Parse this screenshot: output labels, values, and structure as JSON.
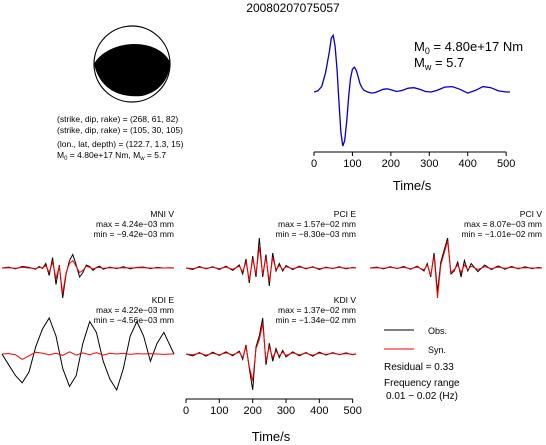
{
  "event_id": "20080207075057",
  "mechanism": {
    "line1": "(strike, dip, rake) = (268, 61, 82)",
    "line2": "(strike, dip, rake) = (105, 30, 105)",
    "line3": "(lon., lat, depth) = (122.7, 1.3, 15)",
    "m0_line": "M",
    "m0_sub": "0",
    "m0_value": " = 4.80e+17 Nm, M",
    "mw_sub": "w",
    "mw_value": " = 5.7"
  },
  "stf_labels": {
    "m0_prefix": "M",
    "m0_sub": "0",
    "m0_value": " = 4.80e+17 Nm",
    "mw_prefix": "M",
    "mw_sub": "w",
    "mw_value": " = 5.7"
  },
  "legend": {
    "obs": "Obs.",
    "syn": "Syn.",
    "residual": "Residual = 0.33",
    "freq_title": "Frequency range",
    "freq_value": "0.01 − 0.02 (Hz)"
  },
  "colors": {
    "observed": "#000000",
    "synthetic": "#ff0000",
    "stf": "#0000cc"
  },
  "chart_data": [
    {
      "type": "line",
      "xlabel": "Time/s",
      "xlim": [
        0,
        510
      ],
      "xticks": [
        0,
        100,
        200,
        300,
        400,
        500
      ],
      "series": [
        {
          "x": [
            0,
            10,
            20,
            30,
            40,
            45,
            50,
            55,
            60,
            65,
            70,
            75,
            80,
            85,
            90,
            95,
            100,
            105,
            110,
            115,
            120,
            125,
            130,
            140,
            150,
            160,
            170,
            180,
            190,
            200,
            215,
            230,
            245,
            260,
            275,
            290,
            305,
            320,
            340,
            360,
            380,
            400,
            420,
            440,
            460,
            480,
            500,
            510
          ],
          "y": [
            0.0,
            0.02,
            0.1,
            0.35,
            0.75,
            1.0,
            1.05,
            0.85,
            0.4,
            -0.2,
            -0.75,
            -1.0,
            -0.9,
            -0.55,
            -0.1,
            0.25,
            0.42,
            0.46,
            0.4,
            0.28,
            0.15,
            0.08,
            0.03,
            0.0,
            -0.02,
            -0.01,
            0.02,
            0.05,
            0.06,
            0.04,
            0.01,
            0.03,
            0.07,
            0.08,
            0.05,
            0.01,
            0.0,
            0.03,
            0.09,
            0.1,
            0.05,
            -0.02,
            0.03,
            0.1,
            0.08,
            0.02,
            0.0,
            0.0
          ]
        }
      ]
    },
    {
      "type": "line",
      "title": "MNI V",
      "max": "max = 4.24e−03 mm",
      "min": "min = −9.42e−03 mm",
      "series": [
        {
          "name": "Obs.",
          "x": [
            0,
            20,
            40,
            60,
            80,
            100,
            110,
            120,
            130,
            140,
            150,
            160,
            170,
            180,
            190,
            200,
            210,
            220,
            230,
            240,
            250,
            260,
            270,
            280,
            290,
            300,
            320,
            340,
            360,
            380,
            400,
            420,
            440,
            460,
            480,
            500,
            510
          ],
          "y": [
            0,
            0.03,
            -0.03,
            0.05,
            0.02,
            -0.04,
            0.05,
            -0.02,
            0.15,
            -0.25,
            0.35,
            -0.55,
            0.1,
            -1.0,
            -0.2,
            0.25,
            0.45,
            0.1,
            -0.3,
            -0.15,
            0.1,
            0.05,
            -0.08,
            0.02,
            0.06,
            -0.04,
            0.03,
            -0.02,
            0.04,
            -0.03,
            0.02,
            0.03,
            -0.02,
            0.02,
            0.0,
            0.01,
            0
          ]
        },
        {
          "name": "Syn.",
          "x": [
            0,
            20,
            40,
            60,
            80,
            100,
            110,
            120,
            130,
            140,
            150,
            160,
            170,
            180,
            190,
            200,
            210,
            220,
            230,
            240,
            250,
            260,
            270,
            280,
            290,
            300,
            320,
            340,
            360,
            380,
            400,
            420,
            440,
            460,
            480,
            500,
            510
          ],
          "y": [
            0,
            0.01,
            -0.01,
            0.02,
            0.0,
            -0.02,
            0.02,
            0.0,
            0.08,
            -0.15,
            0.2,
            -0.35,
            0.05,
            -0.85,
            -0.15,
            0.15,
            0.25,
            0.05,
            -0.15,
            -0.08,
            0.06,
            0.02,
            -0.03,
            0.01,
            0.02,
            -0.01,
            0.01,
            0,
            0.01,
            0,
            0.01,
            0.01,
            0,
            0,
            0,
            0,
            0
          ]
        }
      ]
    },
    {
      "type": "line",
      "title": "PCI E",
      "max": "max = 1.57e−02 mm",
      "min": "min = −8.30e−03 mm",
      "series": [
        {
          "name": "Obs.",
          "x": [
            0,
            20,
            40,
            60,
            80,
            100,
            120,
            140,
            160,
            170,
            180,
            190,
            200,
            210,
            220,
            230,
            240,
            250,
            260,
            270,
            280,
            290,
            300,
            320,
            340,
            360,
            380,
            400,
            420,
            440,
            460,
            480,
            500,
            510
          ],
          "y": [
            0,
            -0.05,
            0.05,
            -0.03,
            0.04,
            -0.05,
            0.06,
            -0.08,
            0.1,
            -0.2,
            0.3,
            -0.5,
            0.4,
            -0.3,
            1.0,
            -0.3,
            0.45,
            -0.6,
            0.5,
            -0.1,
            0.15,
            -0.1,
            0.08,
            -0.05,
            0.06,
            -0.03,
            0.04,
            -0.05,
            0.03,
            -0.02,
            0.04,
            -0.03,
            0.02,
            0
          ]
        },
        {
          "name": "Syn.",
          "x": [
            0,
            20,
            40,
            60,
            80,
            100,
            120,
            140,
            160,
            170,
            180,
            190,
            200,
            210,
            220,
            230,
            240,
            250,
            260,
            270,
            280,
            290,
            300,
            320,
            340,
            360,
            380,
            400,
            420,
            440,
            460,
            480,
            500,
            510
          ],
          "y": [
            0,
            -0.02,
            0.02,
            -0.01,
            0.02,
            -0.02,
            0.03,
            -0.04,
            0.06,
            -0.12,
            0.2,
            -0.4,
            0.3,
            -0.2,
            0.7,
            -0.2,
            0.35,
            -0.45,
            0.35,
            -0.05,
            0.08,
            -0.05,
            0.04,
            -0.02,
            0.03,
            -0.01,
            0.02,
            -0.02,
            0.01,
            -0.01,
            0.02,
            -0.01,
            0.01,
            0
          ]
        }
      ]
    },
    {
      "type": "line",
      "title": "PCI V",
      "max": "max = 8.07e−03 mm",
      "min": "min = −1.01e−02 mm",
      "series": [
        {
          "name": "Obs.",
          "x": [
            0,
            20,
            40,
            60,
            80,
            100,
            120,
            140,
            160,
            170,
            180,
            190,
            200,
            210,
            220,
            230,
            240,
            250,
            260,
            270,
            280,
            290,
            300,
            320,
            340,
            360,
            380,
            400,
            420,
            440,
            460,
            480,
            500,
            510
          ],
          "y": [
            0,
            0.03,
            -0.03,
            0.04,
            -0.02,
            0.05,
            -0.04,
            0.06,
            -0.1,
            0.15,
            -0.3,
            0.5,
            -0.8,
            0.2,
            0.6,
            1.0,
            -0.2,
            -0.1,
            0.2,
            -0.3,
            0.25,
            -0.1,
            0.15,
            -0.12,
            0.1,
            -0.05,
            0.07,
            -0.04,
            0.05,
            -0.03,
            0.04,
            -0.02,
            0.02,
            0
          ]
        },
        {
          "name": "Syn.",
          "x": [
            0,
            20,
            40,
            60,
            80,
            100,
            120,
            140,
            160,
            170,
            180,
            190,
            200,
            210,
            220,
            230,
            240,
            250,
            260,
            270,
            280,
            290,
            300,
            320,
            340,
            360,
            380,
            400,
            420,
            440,
            460,
            480,
            500,
            510
          ],
          "y": [
            0,
            0.01,
            -0.01,
            0.02,
            -0.01,
            0.02,
            -0.02,
            0.03,
            -0.06,
            0.1,
            -0.25,
            0.4,
            -1.0,
            0.1,
            0.5,
            0.9,
            -0.15,
            -0.05,
            0.1,
            -0.15,
            0.1,
            -0.05,
            0.06,
            -0.05,
            0.04,
            -0.02,
            0.03,
            -0.01,
            0.02,
            -0.01,
            0.01,
            0,
            0,
            0
          ]
        }
      ]
    },
    {
      "type": "line",
      "title": "KDI E",
      "max": "max = 4.22e−03 mm",
      "min": "min = −4.56e−03 mm",
      "series": [
        {
          "name": "Obs.",
          "x": [
            0,
            20,
            40,
            60,
            80,
            100,
            120,
            140,
            160,
            180,
            200,
            220,
            240,
            260,
            280,
            300,
            320,
            340,
            360,
            380,
            400,
            420,
            440,
            460,
            480,
            500,
            510
          ],
          "y": [
            0,
            -0.3,
            -0.6,
            -0.8,
            -0.5,
            0.2,
            0.7,
            1.0,
            0.5,
            -0.4,
            -0.9,
            -0.6,
            0.3,
            0.9,
            0.6,
            -0.2,
            -0.7,
            -1.0,
            -0.4,
            0.5,
            0.9,
            0.5,
            -0.2,
            0.3,
            0.6,
            0.2,
            0
          ]
        },
        {
          "name": "Syn.",
          "x": [
            0,
            20,
            40,
            60,
            80,
            100,
            120,
            140,
            160,
            180,
            200,
            220,
            240,
            260,
            280,
            300,
            320,
            340,
            360,
            380,
            400,
            420,
            440,
            460,
            480,
            500,
            510
          ],
          "y": [
            0,
            0.01,
            -0.02,
            -0.15,
            -0.05,
            0.05,
            0.02,
            -0.02,
            0.02,
            -0.04,
            0.06,
            -0.03,
            0.03,
            -0.02,
            0.04,
            -0.03,
            0.02,
            0,
            0.02,
            -0.01,
            0.01,
            0,
            0.01,
            0,
            -0.01,
            0,
            0
          ]
        }
      ]
    },
    {
      "type": "line",
      "title": "KDI V",
      "max": "max = 1.37e−02 mm",
      "min": "min = −1.34e−02 mm",
      "xlabel": "Time/s",
      "xlim": [
        0,
        510
      ],
      "xticks": [
        0,
        100,
        200,
        300,
        400,
        500
      ],
      "series": [
        {
          "name": "Obs.",
          "x": [
            0,
            20,
            40,
            60,
            80,
            100,
            120,
            140,
            160,
            170,
            180,
            190,
            200,
            210,
            220,
            230,
            240,
            250,
            260,
            270,
            280,
            290,
            300,
            320,
            340,
            360,
            380,
            400,
            420,
            440,
            460,
            480,
            500,
            510
          ],
          "y": [
            0,
            -0.05,
            0.04,
            -0.06,
            0.05,
            -0.04,
            0.06,
            -0.05,
            0.08,
            -0.15,
            0.25,
            -0.4,
            -1.0,
            0.2,
            0.5,
            1.0,
            -0.3,
            0.3,
            -0.2,
            0.15,
            -0.1,
            0.1,
            -0.08,
            0.06,
            -0.05,
            0.04,
            -0.06,
            0.05,
            -0.03,
            0.04,
            -0.02,
            0.03,
            -0.02,
            0
          ]
        },
        {
          "name": "Syn.",
          "x": [
            0,
            20,
            40,
            60,
            80,
            100,
            120,
            140,
            160,
            170,
            180,
            190,
            200,
            210,
            220,
            230,
            240,
            250,
            260,
            270,
            280,
            290,
            300,
            320,
            340,
            360,
            380,
            400,
            420,
            440,
            460,
            480,
            500,
            510
          ],
          "y": [
            0,
            -0.02,
            0.02,
            -0.03,
            0.02,
            -0.02,
            0.03,
            -0.02,
            0.05,
            -0.1,
            0.2,
            -0.35,
            -0.75,
            0.15,
            0.4,
            0.85,
            -0.2,
            0.2,
            -0.1,
            0.08,
            -0.05,
            0.05,
            -0.04,
            0.03,
            -0.02,
            0.02,
            -0.03,
            0.02,
            -0.01,
            0.02,
            -0.01,
            0.01,
            -0.01,
            0
          ]
        }
      ]
    }
  ]
}
